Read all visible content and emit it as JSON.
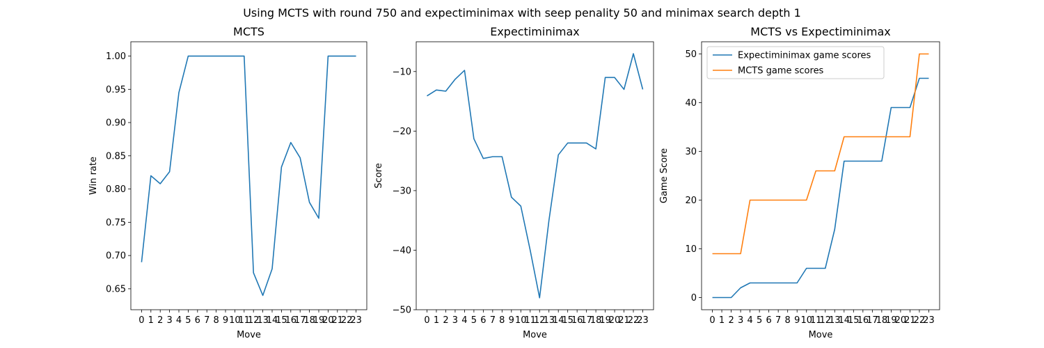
{
  "figure": {
    "suptitle": "Using MCTS with round 750 and expectiminimax with seep penality 50 and minimax search depth 1"
  },
  "colors": {
    "blue": "#1f77b4",
    "orange": "#ff7f0e"
  },
  "chart_data": [
    {
      "type": "line",
      "title": "MCTS",
      "xlabel": "Move",
      "ylabel": "Win rate",
      "x": [
        0,
        1,
        2,
        3,
        4,
        5,
        6,
        7,
        8,
        9,
        10,
        11,
        12,
        13,
        14,
        15,
        16,
        17,
        18,
        19,
        20,
        21,
        22,
        23
      ],
      "xlim": [
        -1.15,
        24.15
      ],
      "ylim": [
        0.6185,
        1.0215
      ],
      "yticks": [
        0.65,
        0.7,
        0.75,
        0.8,
        0.85,
        0.9,
        0.95,
        1.0
      ],
      "ytick_labels": [
        "0.65",
        "0.70",
        "0.75",
        "0.80",
        "0.85",
        "0.90",
        "0.95",
        "1.00"
      ],
      "series": [
        {
          "color": "#1f77b4",
          "values": [
            0.69,
            0.82,
            0.808,
            0.826,
            0.945,
            1.0,
            1.0,
            1.0,
            1.0,
            1.0,
            1.0,
            1.0,
            0.674,
            0.64,
            0.68,
            0.833,
            0.87,
            0.847,
            0.78,
            0.756,
            1.0,
            1.0,
            1.0,
            1.0
          ]
        }
      ]
    },
    {
      "type": "line",
      "title": "Expectiminimax",
      "xlabel": "Move",
      "ylabel": "Score",
      "x": [
        0,
        1,
        2,
        3,
        4,
        5,
        6,
        7,
        8,
        9,
        10,
        11,
        12,
        13,
        14,
        15,
        16,
        17,
        18,
        19,
        20,
        21,
        22,
        23
      ],
      "xlim": [
        -1.15,
        24.15
      ],
      "ylim": [
        -50,
        -5
      ],
      "yticks": [
        -50,
        -40,
        -30,
        -20,
        -10
      ],
      "ytick_labels": [
        "−50",
        "−40",
        "−30",
        "−20",
        "−10"
      ],
      "series": [
        {
          "color": "#1f77b4",
          "values": [
            -14.1,
            -13.1,
            -13.3,
            -11.3,
            -9.8,
            -21.3,
            -24.6,
            -24.3,
            -24.3,
            -31.1,
            -32.6,
            -40.0,
            -48.0,
            -35.0,
            -24.0,
            -22.0,
            -22.0,
            -22.0,
            -23.0,
            -11.0,
            -11.0,
            -13.0,
            -7.0,
            -13.0
          ]
        }
      ]
    },
    {
      "type": "line",
      "title": "MCTS vs Expectiminimax",
      "xlabel": "Move",
      "ylabel": "Game Score",
      "x": [
        0,
        1,
        2,
        3,
        4,
        5,
        6,
        7,
        8,
        9,
        10,
        11,
        12,
        13,
        14,
        15,
        16,
        17,
        18,
        19,
        20,
        21,
        22,
        23
      ],
      "xlim": [
        -1.15,
        24.15
      ],
      "ylim": [
        -2.5,
        52.5
      ],
      "yticks": [
        0,
        10,
        20,
        30,
        40,
        50
      ],
      "ytick_labels": [
        "0",
        "10",
        "20",
        "30",
        "40",
        "50"
      ],
      "legend": "top-left",
      "series": [
        {
          "name": "Expectiminimax game scores",
          "color": "#1f77b4",
          "values": [
            0,
            0,
            0,
            2,
            3,
            3,
            3,
            3,
            3,
            3,
            6,
            6,
            6,
            14,
            28,
            28,
            28,
            28,
            28,
            39,
            39,
            39,
            45,
            45
          ]
        },
        {
          "name": "MCTS game scores",
          "color": "#ff7f0e",
          "values": [
            9,
            9,
            9,
            9,
            20,
            20,
            20,
            20,
            20,
            20,
            20,
            26,
            26,
            26,
            33,
            33,
            33,
            33,
            33,
            33,
            33,
            33,
            50,
            50
          ]
        }
      ]
    }
  ]
}
